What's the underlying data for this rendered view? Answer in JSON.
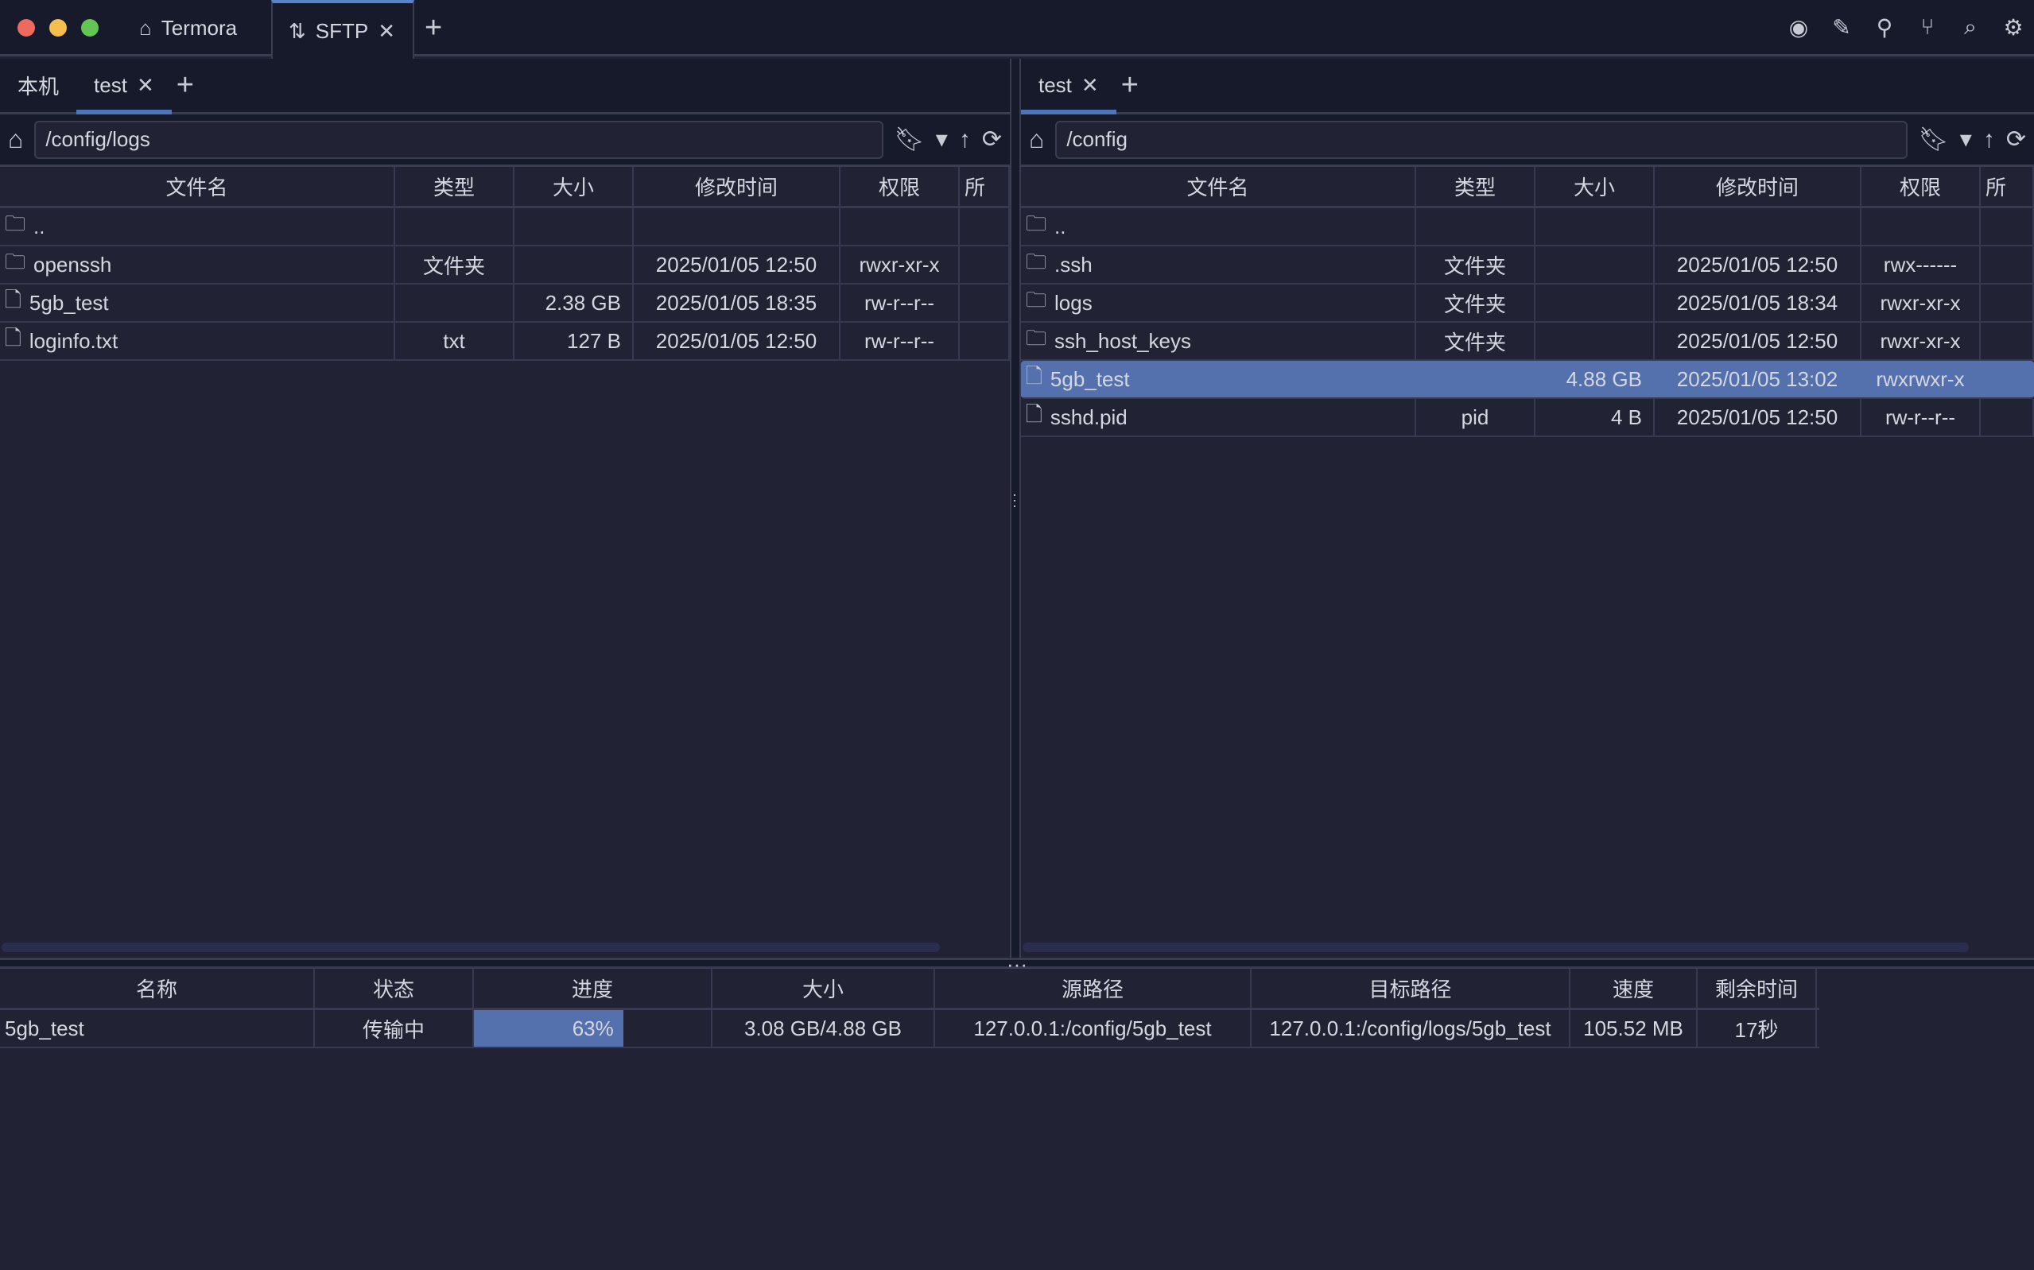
{
  "window": {
    "traffic_colors": [
      "#ee6a5f",
      "#f5be4f",
      "#62c554"
    ]
  },
  "tabs": [
    {
      "label": "Termora",
      "icon": "home-icon"
    },
    {
      "label": "SFTP",
      "icon": "transfer-arrows-icon",
      "active": true
    }
  ],
  "toolbar_icons": [
    "record-icon",
    "pencil-icon",
    "key-icon",
    "git-branch-icon",
    "search-icon",
    "gear-icon"
  ],
  "left": {
    "tabs": [
      {
        "label": "本机"
      },
      {
        "label": "test",
        "active": true
      }
    ],
    "path": "/config/logs",
    "columns": [
      "文件名",
      "类型",
      "大小",
      "修改时间",
      "权限",
      "所"
    ],
    "rows": [
      {
        "icon": "folder",
        "name": "..",
        "type": "",
        "size": "",
        "mtime": "",
        "perm": ""
      },
      {
        "icon": "folder",
        "name": "openssh",
        "type": "文件夹",
        "size": "",
        "mtime": "2025/01/05 12:50",
        "perm": "rwxr-xr-x"
      },
      {
        "icon": "file",
        "name": "5gb_test",
        "type": "",
        "size": "2.38 GB",
        "mtime": "2025/01/05 18:35",
        "perm": "rw-r--r--"
      },
      {
        "icon": "file",
        "name": "loginfo.txt",
        "type": "txt",
        "size": "127 B",
        "mtime": "2025/01/05 12:50",
        "perm": "rw-r--r--"
      }
    ]
  },
  "right": {
    "tabs": [
      {
        "label": "test",
        "active": true
      }
    ],
    "path": "/config",
    "columns": [
      "文件名",
      "类型",
      "大小",
      "修改时间",
      "权限",
      "所"
    ],
    "rows": [
      {
        "icon": "folder",
        "name": "..",
        "type": "",
        "size": "",
        "mtime": "",
        "perm": ""
      },
      {
        "icon": "folder",
        "name": ".ssh",
        "type": "文件夹",
        "size": "",
        "mtime": "2025/01/05 12:50",
        "perm": "rwx------"
      },
      {
        "icon": "folder",
        "name": "logs",
        "type": "文件夹",
        "size": "",
        "mtime": "2025/01/05 18:34",
        "perm": "rwxr-xr-x"
      },
      {
        "icon": "folder",
        "name": "ssh_host_keys",
        "type": "文件夹",
        "size": "",
        "mtime": "2025/01/05 12:50",
        "perm": "rwxr-xr-x"
      },
      {
        "icon": "file",
        "name": "5gb_test",
        "type": "",
        "size": "4.88 GB",
        "mtime": "2025/01/05 13:02",
        "perm": "rwxrwxr-x",
        "selected": true
      },
      {
        "icon": "file",
        "name": "sshd.pid",
        "type": "pid",
        "size": "4 B",
        "mtime": "2025/01/05 12:50",
        "perm": "rw-r--r--"
      }
    ]
  },
  "transfers": {
    "columns": [
      "名称",
      "状态",
      "进度",
      "大小",
      "源路径",
      "目标路径",
      "速度",
      "剩余时间"
    ],
    "rows": [
      {
        "name": "5gb_test",
        "status": "传输中",
        "progress": "63%",
        "progress_value": 63,
        "size": "3.08 GB/4.88 GB",
        "source": "127.0.0.1:/config/5gb_test",
        "target": "127.0.0.1:/config/logs/5gb_test",
        "speed": "105.52 MB",
        "remaining": "17秒"
      }
    ]
  },
  "colors": {
    "accent": "#5470ad",
    "tab_indicator": "#4f74b8"
  }
}
